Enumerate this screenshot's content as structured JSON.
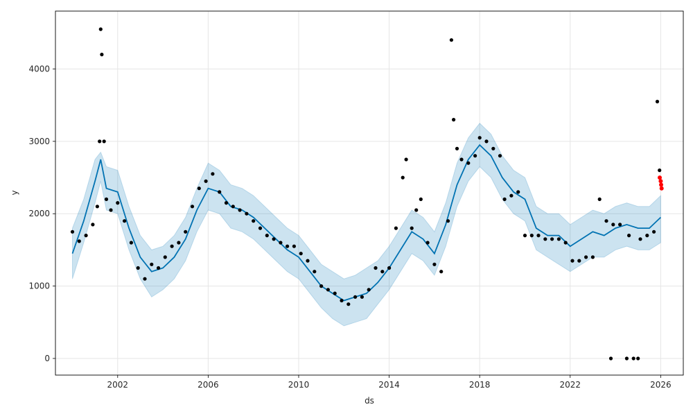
{
  "chart_data": {
    "type": "scatter",
    "title": "",
    "xlabel": "ds",
    "ylabel": "y",
    "xlim": [
      1999.25,
      2027.0
    ],
    "ylim": [
      -230,
      4800
    ],
    "grid": true,
    "x_ticks": [
      2002,
      2006,
      2010,
      2014,
      2018,
      2022,
      2026
    ],
    "x_tick_labels": [
      "2002",
      "2006",
      "2010",
      "2014",
      "2018",
      "2022",
      "2026"
    ],
    "y_ticks": [
      0,
      1000,
      2000,
      3000,
      4000
    ],
    "y_tick_labels": [
      "0",
      "1000",
      "2000",
      "3000",
      "4000"
    ],
    "colors": {
      "observed": "#000000",
      "forecast_line": "#0072b2",
      "uncertainty_band": "#0072b2",
      "recent": "#ff0000"
    },
    "series": [
      {
        "role": "forecast",
        "x": [
          2000.0,
          2000.5,
          2001.0,
          2001.25,
          2001.5,
          2002.0,
          2002.5,
          2003.0,
          2003.5,
          2004.0,
          2004.5,
          2005.0,
          2005.5,
          2006.0,
          2006.5,
          2007.0,
          2007.5,
          2008.0,
          2008.5,
          2009.0,
          2009.5,
          2010.0,
          2010.5,
          2011.0,
          2011.5,
          2012.0,
          2012.5,
          2013.0,
          2013.5,
          2014.0,
          2014.5,
          2015.0,
          2015.5,
          2016.0,
          2016.5,
          2017.0,
          2017.5,
          2018.0,
          2018.5,
          2019.0,
          2019.5,
          2020.0,
          2020.5,
          2021.0,
          2021.5,
          2022.0,
          2022.5,
          2023.0,
          2023.5,
          2024.0,
          2024.5,
          2025.0,
          2025.5,
          2026.0
        ],
        "yhat": [
          1450,
          1900,
          2450,
          2750,
          2350,
          2300,
          1800,
          1400,
          1200,
          1250,
          1400,
          1650,
          2050,
          2350,
          2300,
          2100,
          2050,
          1950,
          1800,
          1650,
          1500,
          1400,
          1200,
          1000,
          900,
          800,
          850,
          900,
          1050,
          1250,
          1500,
          1750,
          1650,
          1450,
          1850,
          2400,
          2750,
          2950,
          2800,
          2500,
          2300,
          2200,
          1800,
          1700,
          1700,
          1550,
          1650,
          1750,
          1700,
          1800,
          1850,
          1800,
          1800,
          1950
        ],
        "yhat_lower": [
          1100,
          1600,
          2150,
          2450,
          2050,
          2000,
          1500,
          1100,
          850,
          950,
          1100,
          1350,
          1750,
          2050,
          2000,
          1800,
          1750,
          1650,
          1500,
          1350,
          1200,
          1100,
          900,
          700,
          550,
          450,
          500,
          550,
          750,
          950,
          1200,
          1450,
          1350,
          1150,
          1550,
          2100,
          2450,
          2650,
          2500,
          2200,
          2000,
          1900,
          1500,
          1400,
          1300,
          1200,
          1300,
          1400,
          1400,
          1500,
          1550,
          1500,
          1500,
          1600
        ],
        "yhat_upper": [
          1800,
          2200,
          2750,
          2850,
          2650,
          2600,
          2100,
          1700,
          1500,
          1550,
          1700,
          1950,
          2350,
          2700,
          2600,
          2400,
          2350,
          2250,
          2100,
          1950,
          1800,
          1700,
          1500,
          1300,
          1200,
          1100,
          1150,
          1250,
          1350,
          1550,
          1800,
          2050,
          1950,
          1750,
          2150,
          2700,
          3050,
          3250,
          3100,
          2800,
          2600,
          2500,
          2100,
          2000,
          2000,
          1850,
          1950,
          2050,
          2000,
          2100,
          2150,
          2100,
          2100,
          2250
        ]
      },
      {
        "role": "observed",
        "x": [
          2000.0,
          2000.3,
          2000.6,
          2000.9,
          2001.1,
          2001.2,
          2001.25,
          2001.3,
          2001.4,
          2001.5,
          2001.7,
          2002.0,
          2002.3,
          2002.6,
          2002.9,
          2003.2,
          2003.5,
          2003.8,
          2004.1,
          2004.4,
          2004.7,
          2005.0,
          2005.3,
          2005.6,
          2005.9,
          2006.2,
          2006.5,
          2006.8,
          2007.1,
          2007.4,
          2007.7,
          2008.0,
          2008.3,
          2008.6,
          2008.9,
          2009.2,
          2009.5,
          2009.8,
          2010.1,
          2010.4,
          2010.7,
          2011.0,
          2011.3,
          2011.6,
          2011.9,
          2012.2,
          2012.5,
          2012.8,
          2013.1,
          2013.4,
          2013.7,
          2014.0,
          2014.3,
          2014.6,
          2014.75,
          2015.0,
          2015.2,
          2015.4,
          2015.7,
          2016.0,
          2016.3,
          2016.6,
          2016.75,
          2016.85,
          2017.0,
          2017.2,
          2017.5,
          2017.8,
          2018.0,
          2018.3,
          2018.6,
          2018.9,
          2019.1,
          2019.4,
          2019.7,
          2020.0,
          2020.3,
          2020.6,
          2020.9,
          2021.2,
          2021.5,
          2021.8,
          2022.1,
          2022.4,
          2022.7,
          2023.0,
          2023.3,
          2023.6,
          2023.8,
          2023.9,
          2024.2,
          2024.5,
          2024.6,
          2024.8,
          2025.0,
          2025.1,
          2025.4,
          2025.7,
          2025.85,
          2025.95
        ],
        "y": [
          1750,
          1620,
          1700,
          1850,
          2100,
          3000,
          4550,
          4200,
          3000,
          2200,
          2050,
          2150,
          1900,
          1600,
          1250,
          1100,
          1300,
          1250,
          1400,
          1550,
          1600,
          1750,
          2100,
          2350,
          2450,
          2550,
          2300,
          2150,
          2100,
          2050,
          2000,
          1900,
          1800,
          1700,
          1650,
          1600,
          1550,
          1550,
          1450,
          1350,
          1200,
          1000,
          950,
          900,
          800,
          750,
          850,
          850,
          950,
          1250,
          1200,
          1250,
          1800,
          2500,
          2750,
          1800,
          2050,
          2200,
          1600,
          1300,
          1200,
          1900,
          4400,
          3300,
          2900,
          2750,
          2700,
          2800,
          3050,
          3000,
          2900,
          2800,
          2200,
          2250,
          2300,
          1700,
          1700,
          1700,
          1650,
          1650,
          1650,
          1600,
          1350,
          1350,
          1400,
          1400,
          2200,
          1900,
          0,
          1850,
          1850,
          0,
          1700,
          0,
          0,
          1650,
          1700,
          1750,
          3550,
          2600
        ]
      },
      {
        "role": "recent",
        "x": [
          2025.96,
          2026.0,
          2026.02,
          2026.04
        ],
        "y": [
          2500,
          2450,
          2400,
          2350
        ]
      }
    ]
  }
}
